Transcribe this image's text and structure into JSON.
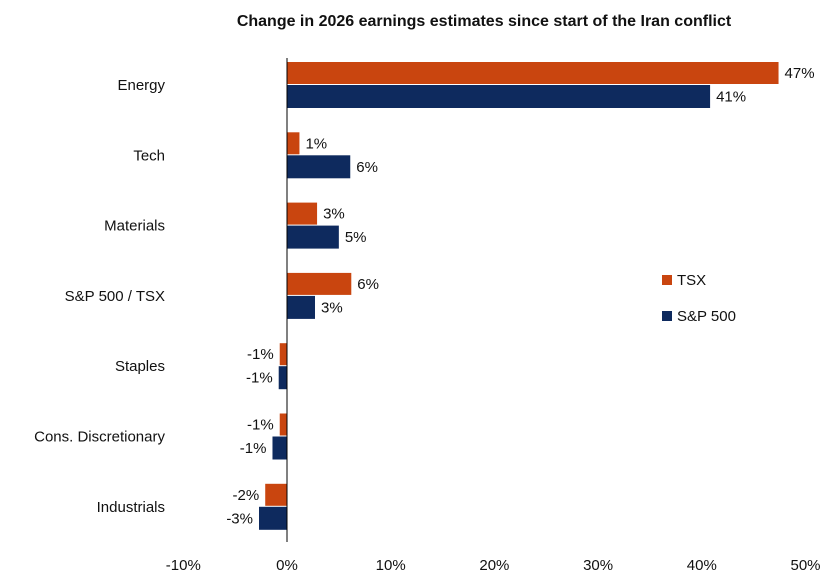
{
  "chart_data": {
    "type": "bar",
    "orientation": "horizontal",
    "title": "Change in 2026 earnings estimates since start of the Iran conflict",
    "xlabel": "",
    "ylabel": "",
    "categories": [
      "Energy",
      "Tech",
      "Materials",
      "S&P 500 / TSX",
      "Staples",
      "Cons. Discretionary",
      "Industrials"
    ],
    "series": [
      {
        "name": "TSX",
        "color": "#C9450F",
        "values": [
          47.4,
          1.2,
          2.9,
          6.2,
          -0.7,
          -0.7,
          -2.1
        ],
        "labels": [
          "47%",
          "1%",
          "3%",
          "6%",
          "-1%",
          "-1%",
          "-2%"
        ]
      },
      {
        "name": "S&P 500",
        "color": "#0E2A5E",
        "values": [
          40.8,
          6.1,
          5.0,
          2.7,
          -0.8,
          -1.4,
          -2.7
        ],
        "labels": [
          "41%",
          "6%",
          "5%",
          "3%",
          "-1%",
          "-1%",
          "-3%"
        ]
      }
    ],
    "xlim": [
      -10,
      50
    ],
    "xticks": [
      -10,
      0,
      10,
      20,
      30,
      40,
      50
    ],
    "xtick_labels": [
      "-10%",
      "0%",
      "10%",
      "20%",
      "30%",
      "40%",
      "50%"
    ],
    "grid": false,
    "legend_position": "right"
  }
}
